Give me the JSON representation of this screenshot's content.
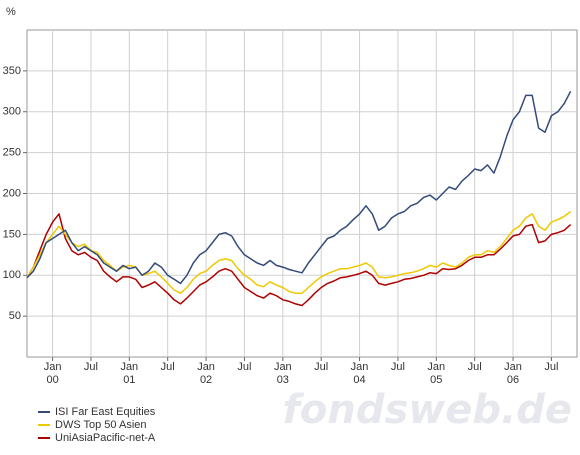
{
  "chart_data": {
    "type": "line",
    "y_unit": "%",
    "watermark": "fondsweb.de",
    "x": [
      "1999-09",
      "1999-10",
      "1999-11",
      "1999-12",
      "2000-01",
      "2000-02",
      "2000-03",
      "2000-04",
      "2000-05",
      "2000-06",
      "2000-07",
      "2000-08",
      "2000-09",
      "2000-10",
      "2000-11",
      "2000-12",
      "2001-01",
      "2001-02",
      "2001-03",
      "2001-04",
      "2001-05",
      "2001-06",
      "2001-07",
      "2001-08",
      "2001-09",
      "2001-10",
      "2001-11",
      "2001-12",
      "2002-01",
      "2002-02",
      "2002-03",
      "2002-04",
      "2002-05",
      "2002-06",
      "2002-07",
      "2002-08",
      "2002-09",
      "2002-10",
      "2002-11",
      "2002-12",
      "2003-01",
      "2003-02",
      "2003-03",
      "2003-04",
      "2003-05",
      "2003-06",
      "2003-07",
      "2003-08",
      "2003-09",
      "2003-10",
      "2003-11",
      "2003-12",
      "2004-01",
      "2004-02",
      "2004-03",
      "2004-04",
      "2004-05",
      "2004-06",
      "2004-07",
      "2004-08",
      "2004-09",
      "2004-10",
      "2004-11",
      "2004-12",
      "2005-01",
      "2005-02",
      "2005-03",
      "2005-04",
      "2005-05",
      "2005-06",
      "2005-07",
      "2005-08",
      "2005-09",
      "2005-10",
      "2005-11",
      "2005-12",
      "2006-01",
      "2006-02",
      "2006-03",
      "2006-04",
      "2006-05",
      "2006-06",
      "2006-07",
      "2006-08",
      "2006-09",
      "2006-10"
    ],
    "xlim": [
      "1999-09",
      "2006-11"
    ],
    "xticks": [
      {
        "value": "2000-01",
        "label": "Jan",
        "year": "00"
      },
      {
        "value": "2000-07",
        "label": "Jul"
      },
      {
        "value": "2001-01",
        "label": "Jan",
        "year": "01"
      },
      {
        "value": "2001-07",
        "label": "Jul"
      },
      {
        "value": "2002-01",
        "label": "Jan",
        "year": "02"
      },
      {
        "value": "2002-07",
        "label": "Jul"
      },
      {
        "value": "2003-01",
        "label": "Jan",
        "year": "03"
      },
      {
        "value": "2003-07",
        "label": "Jul"
      },
      {
        "value": "2004-01",
        "label": "Jan",
        "year": "04"
      },
      {
        "value": "2004-07",
        "label": "Jul"
      },
      {
        "value": "2005-01",
        "label": "Jan",
        "year": "05"
      },
      {
        "value": "2005-07",
        "label": "Jul"
      },
      {
        "value": "2006-01",
        "label": "Jan",
        "year": "06"
      },
      {
        "value": "2006-07",
        "label": "Jul"
      }
    ],
    "ylim": [
      0,
      400
    ],
    "yticks": [
      50,
      100,
      150,
      200,
      250,
      300,
      350
    ],
    "grid": true,
    "legend": "bottom-left",
    "series": [
      {
        "name": "ISI Far East Equities",
        "color": "#334a7a",
        "values": [
          97,
          105,
          120,
          140,
          145,
          150,
          155,
          140,
          130,
          135,
          130,
          125,
          115,
          110,
          105,
          112,
          108,
          110,
          100,
          105,
          115,
          110,
          100,
          95,
          90,
          100,
          115,
          125,
          130,
          140,
          150,
          152,
          148,
          135,
          125,
          120,
          115,
          112,
          118,
          112,
          110,
          107,
          105,
          103,
          115,
          125,
          135,
          145,
          148,
          155,
          160,
          168,
          175,
          185,
          175,
          155,
          160,
          170,
          175,
          178,
          185,
          188,
          195,
          198,
          192,
          200,
          208,
          205,
          215,
          222,
          230,
          228,
          235,
          225,
          245,
          270,
          290,
          300,
          320,
          320,
          280,
          275,
          295,
          300,
          310,
          325
        ]
      },
      {
        "name": "DWS Top 50 Asien",
        "color": "#f0c800",
        "values": [
          97,
          110,
          125,
          140,
          150,
          160,
          150,
          140,
          135,
          138,
          130,
          128,
          118,
          112,
          105,
          110,
          112,
          110,
          100,
          102,
          105,
          98,
          90,
          82,
          78,
          85,
          95,
          102,
          105,
          112,
          118,
          120,
          118,
          108,
          100,
          95,
          88,
          86,
          92,
          88,
          85,
          80,
          78,
          78,
          85,
          92,
          98,
          102,
          105,
          108,
          108,
          110,
          112,
          115,
          110,
          98,
          97,
          98,
          100,
          102,
          103,
          105,
          108,
          112,
          110,
          115,
          112,
          110,
          115,
          122,
          125,
          125,
          130,
          128,
          135,
          145,
          155,
          160,
          170,
          175,
          160,
          155,
          165,
          168,
          172,
          178
        ]
      },
      {
        "name": "UniAsiaPacific-net-A",
        "color": "#b00000",
        "values": [
          97,
          110,
          130,
          150,
          165,
          175,
          145,
          130,
          125,
          128,
          122,
          118,
          105,
          98,
          92,
          98,
          98,
          95,
          85,
          88,
          92,
          85,
          78,
          70,
          65,
          72,
          80,
          88,
          92,
          98,
          105,
          108,
          105,
          95,
          85,
          80,
          75,
          72,
          78,
          75,
          70,
          68,
          65,
          63,
          70,
          78,
          85,
          90,
          93,
          97,
          98,
          100,
          102,
          105,
          100,
          90,
          88,
          90,
          92,
          95,
          96,
          98,
          100,
          103,
          102,
          108,
          107,
          108,
          112,
          118,
          122,
          122,
          125,
          125,
          132,
          140,
          148,
          150,
          160,
          162,
          140,
          142,
          150,
          152,
          155,
          162
        ]
      }
    ]
  }
}
